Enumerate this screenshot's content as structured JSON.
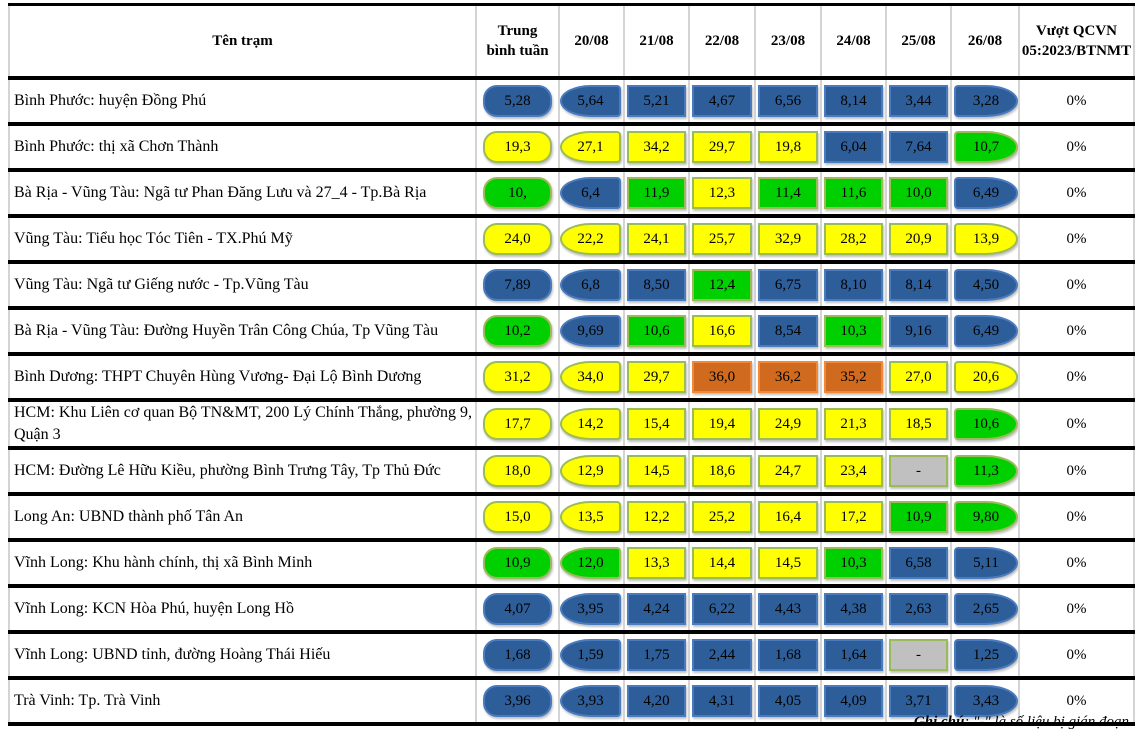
{
  "colors": {
    "b": "#2e5e99",
    "y": "#ffff00",
    "g": "#00d000",
    "o": "#d06a1e",
    "x": "#c0c0c0"
  },
  "header": {
    "station": "Tên trạm",
    "avg_line1": "Trung",
    "avg_line2": "bình tuần",
    "dates": [
      "20/08",
      "21/08",
      "22/08",
      "23/08",
      "24/08",
      "25/08",
      "26/08"
    ],
    "exceed": "Vượt QCVN 05:2023/BTNMT"
  },
  "rows": [
    {
      "name": "Bình Phước: huyện Đồng Phú",
      "avg": "5,28",
      "avg_c": "b",
      "values": [
        "5,64",
        "5,21",
        "4,67",
        "6,56",
        "8,14",
        "3,44",
        "3,28"
      ],
      "levels": [
        "b",
        "b",
        "b",
        "b",
        "b",
        "b",
        "b"
      ],
      "exceed": "0%"
    },
    {
      "name": "Bình Phước: thị xã Chơn Thành",
      "avg": "19,3",
      "avg_c": "y",
      "values": [
        "27,1",
        "34,2",
        "29,7",
        "19,8",
        "6,04",
        "7,64",
        "10,7"
      ],
      "levels": [
        "y",
        "y",
        "y",
        "y",
        "b",
        "b",
        "g"
      ],
      "exceed": "0%"
    },
    {
      "name": "Bà Rịa - Vũng Tàu: Ngã tư Phan Đăng Lưu và 27_4 - Tp.Bà Rịa",
      "avg": "10,",
      "avg_c": "g",
      "values": [
        "6,4",
        "11,9",
        "12,3",
        "11,4",
        "11,6",
        "10,0",
        "6,49"
      ],
      "levels": [
        "b",
        "g",
        "y",
        "g",
        "g",
        "g",
        "b"
      ],
      "exceed": "0%"
    },
    {
      "name": "Vũng Tàu: Tiểu học Tóc Tiên - TX.Phú Mỹ",
      "avg": "24,0",
      "avg_c": "y",
      "values": [
        "22,2",
        "24,1",
        "25,7",
        "32,9",
        "28,2",
        "20,9",
        "13,9"
      ],
      "levels": [
        "y",
        "y",
        "y",
        "y",
        "y",
        "y",
        "y"
      ],
      "exceed": "0%"
    },
    {
      "name": "Vũng Tàu: Ngã tư Giếng nước - Tp.Vũng Tàu",
      "avg": "7,89",
      "avg_c": "b",
      "values": [
        "6,8",
        "8,50",
        "12,4",
        "6,75",
        "8,10",
        "8,14",
        "4,50"
      ],
      "levels": [
        "b",
        "b",
        "g",
        "b",
        "b",
        "b",
        "b"
      ],
      "exceed": "0%"
    },
    {
      "name": "Bà Rịa - Vũng Tàu: Đường Huyền Trân Công Chúa, Tp Vũng Tàu",
      "avg": "10,2",
      "avg_c": "g",
      "values": [
        "9,69",
        "10,6",
        "16,6",
        "8,54",
        "10,3",
        "9,16",
        "6,49"
      ],
      "levels": [
        "b",
        "g",
        "y",
        "b",
        "g",
        "b",
        "b"
      ],
      "exceed": "0%"
    },
    {
      "name": "Bình Dương: THPT Chuyên Hùng Vương- Đại Lộ Bình Dương",
      "avg": "31,2",
      "avg_c": "y",
      "values": [
        "34,0",
        "29,7",
        "36,0",
        "36,2",
        "35,2",
        "27,0",
        "20,6"
      ],
      "levels": [
        "y",
        "y",
        "o",
        "o",
        "o",
        "y",
        "y"
      ],
      "exceed": "0%"
    },
    {
      "name": "HCM: Khu Liên cơ quan Bộ TN&MT, 200 Lý Chính Thắng, phường 9, Quận 3",
      "avg": "17,7",
      "avg_c": "y",
      "values": [
        "14,2",
        "15,4",
        "19,4",
        "24,9",
        "21,3",
        "18,5",
        "10,6"
      ],
      "levels": [
        "y",
        "y",
        "y",
        "y",
        "y",
        "y",
        "g"
      ],
      "exceed": "0%"
    },
    {
      "name": "HCM: Đường Lê Hữu Kiều, phường Bình Trưng Tây, Tp Thủ Đức",
      "avg": "18,0",
      "avg_c": "y",
      "values": [
        "12,9",
        "14,5",
        "18,6",
        "24,7",
        "23,4",
        "-",
        "11,3"
      ],
      "levels": [
        "y",
        "y",
        "y",
        "y",
        "y",
        "x",
        "g"
      ],
      "exceed": "0%"
    },
    {
      "name": "Long An: UBND thành phố Tân An",
      "avg": "15,0",
      "avg_c": "y",
      "values": [
        "13,5",
        "12,2",
        "25,2",
        "16,4",
        "17,2",
        "10,9",
        "9,80"
      ],
      "levels": [
        "y",
        "y",
        "y",
        "y",
        "y",
        "g",
        "g"
      ],
      "exceed": "0%"
    },
    {
      "name": "Vĩnh Long: Khu hành chính, thị xã Bình Minh",
      "avg": "10,9",
      "avg_c": "g",
      "values": [
        "12,0",
        "13,3",
        "14,4",
        "14,5",
        "10,3",
        "6,58",
        "5,11"
      ],
      "levels": [
        "g",
        "y",
        "y",
        "y",
        "g",
        "b",
        "b"
      ],
      "exceed": "0%"
    },
    {
      "name": "Vĩnh Long: KCN Hòa Phú, huyện Long Hồ",
      "avg": "4,07",
      "avg_c": "b",
      "values": [
        "3,95",
        "4,24",
        "6,22",
        "4,43",
        "4,38",
        "2,63",
        "2,65"
      ],
      "levels": [
        "b",
        "b",
        "b",
        "b",
        "b",
        "b",
        "b"
      ],
      "exceed": "0%"
    },
    {
      "name": "Vĩnh Long: UBND tỉnh, đường Hoàng Thái Hiếu",
      "avg": "1,68",
      "avg_c": "b",
      "values": [
        "1,59",
        "1,75",
        "2,44",
        "1,68",
        "1,64",
        "-",
        "1,25"
      ],
      "levels": [
        "b",
        "b",
        "b",
        "b",
        "b",
        "x",
        "b"
      ],
      "exceed": "0%"
    },
    {
      "name": "Trà Vinh: Tp. Trà Vinh",
      "avg": "3,96",
      "avg_c": "b",
      "values": [
        "3,93",
        "4,20",
        "4,31",
        "4,05",
        "4,09",
        "3,71",
        "3,43"
      ],
      "levels": [
        "b",
        "b",
        "b",
        "b",
        "b",
        "b",
        "b"
      ],
      "exceed": "0%"
    }
  ],
  "note": {
    "label": "Ghi chú",
    "text": ": \"-\" là số liệu bị gián đoạn"
  }
}
